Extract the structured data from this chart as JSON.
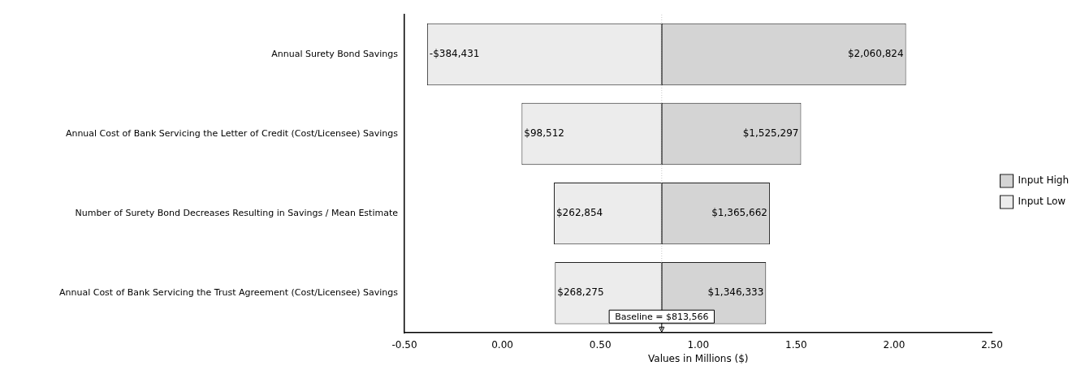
{
  "chart_data": {
    "type": "bar",
    "orientation": "horizontal",
    "xlabel": "Values in Millions ($)",
    "categories": [
      "Annual Surety Bond Savings",
      "Annual Cost of Bank Servicing the Letter of Credit (Cost/Licensee) Savings",
      "Number of Surety Bond Decreases Resulting in Savings / Mean Estimate",
      "Annual Cost of Bank Servicing the Trust Agreement (Cost/Licensee) Savings"
    ],
    "series": [
      {
        "name": "Input High",
        "color": "#d4d4d4",
        "base": [
          0.813566,
          0.813566,
          0.813566,
          0.813566
        ],
        "values": [
          1.247258,
          0.711731,
          0.552096,
          0.532767
        ]
      },
      {
        "name": "Input Low",
        "color": "#ececec",
        "base": [
          -0.384431,
          0.098512,
          0.262854,
          0.268275
        ],
        "values": [
          1.197997,
          0.715054,
          0.550712,
          0.545291
        ]
      }
    ],
    "annotations": [
      {
        "text": "$2,060,824",
        "x": 2.060824,
        "y": "Annual Surety Bond Savings"
      },
      {
        "text": "$1,525,297",
        "x": 1.525297,
        "y": "Annual Cost of Bank Servicing the Letter of Credit (Cost/Licensee) Savings"
      },
      {
        "text": "$1,365,662",
        "x": 1.365662,
        "y": "Number of Surety Bond Decreases Resulting in Savings / Mean Estimate"
      },
      {
        "text": "$1,346,333",
        "x": 1.346333,
        "y": "Annual Cost of Bank Servicing the Trust Agreement (Cost/Licensee) Savings"
      },
      {
        "text": "-$384,431",
        "x": -0.384431,
        "y": "Annual Surety Bond Savings"
      },
      {
        "text": "$98,512",
        "x": 0.098512,
        "y": "Annual Cost of Bank Servicing the Letter of Credit (Cost/Licensee) Savings"
      },
      {
        "text": "$262,854",
        "x": 0.262854,
        "y": "Number of Surety Bond Decreases Resulting in Savings / Mean Estimate"
      },
      {
        "text": "$268,275",
        "x": 0.268275,
        "y": "Annual Cost of Bank Servicing the Trust Agreement (Cost/Licensee) Savings"
      }
    ],
    "xlim": [
      -0.5,
      2.5
    ],
    "xticks": [
      {
        "value": -0.5,
        "label": "-0.50"
      },
      {
        "value": 0,
        "label": "0.00"
      },
      {
        "value": 0.5,
        "label": "0.50"
      },
      {
        "value": 1,
        "label": "1.00"
      },
      {
        "value": 1.5,
        "label": "1.50"
      },
      {
        "value": 2,
        "label": "2.00"
      },
      {
        "value": 2.5,
        "label": "2.50"
      }
    ],
    "ref_lines": [
      {
        "axis": "x",
        "value": 0.813566,
        "label": "Baseline = $813,566",
        "color": "#c8c8c8",
        "line_style": "dotted"
      }
    ],
    "grid": false,
    "legend": "right"
  }
}
